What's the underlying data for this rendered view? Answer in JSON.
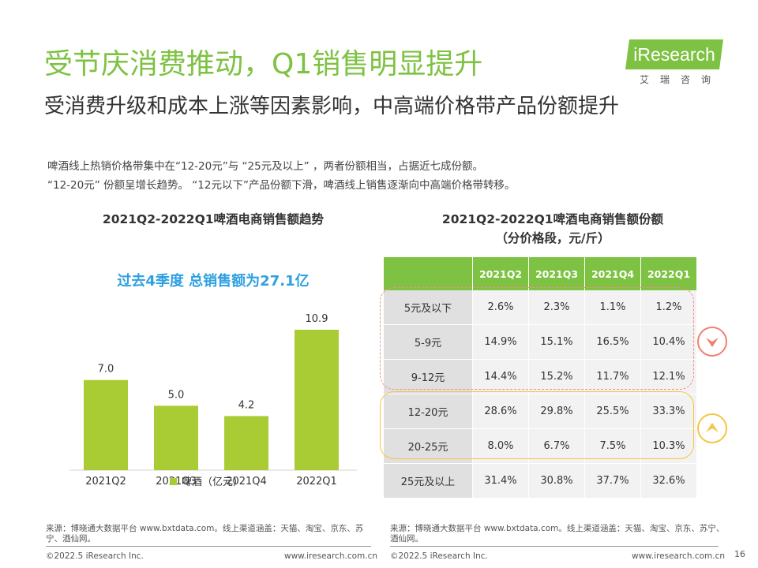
{
  "title": "受节庆消费推动，Q1销售明显提升",
  "subtitle": "受消费升级和成本上涨等因素影响，中高端价格带产品份额提升",
  "logo": {
    "word": "iResearch",
    "cn": "艾瑞咨询"
  },
  "description": [
    "啤酒线上热销价格带集中在“12-20元”与 “25元及以上” ，两者份额相当，占据近七成份额。",
    "“12-20元” 份额呈增长趋势。 “12元以下”产品份额下滑，啤酒线上销售逐渐向中高端价格带转移。"
  ],
  "highlight": "过去4季度 总销售额为27.1亿",
  "chart_data": [
    {
      "type": "bar",
      "title": "2021Q2-2022Q1啤酒电商销售额趋势",
      "categories": [
        "2021Q2",
        "2021Q3",
        "2021Q4",
        "2022Q1"
      ],
      "series": [
        {
          "name": "啤酒（亿元）",
          "values": [
            7.0,
            5.0,
            4.2,
            10.9
          ]
        }
      ],
      "data_labels": [
        "7.0",
        "5.0",
        "4.2",
        "10.9"
      ],
      "ylim": [
        0,
        12
      ],
      "legend": "bottom",
      "color": "#a9cc35"
    },
    {
      "type": "table",
      "title": "2021Q2-2022Q1啤酒电商销售额份额",
      "subtitle": "（分价格段，元/斤）",
      "columns": [
        "2021Q2",
        "2021Q3",
        "2021Q4",
        "2022Q1"
      ],
      "rows": [
        {
          "label": "5元及以下",
          "values": [
            "2.6%",
            "2.3%",
            "1.1%",
            "1.2%"
          ]
        },
        {
          "label": "5-9元",
          "values": [
            "14.9%",
            "15.1%",
            "16.5%",
            "10.4%"
          ]
        },
        {
          "label": "9-12元",
          "values": [
            "14.4%",
            "15.2%",
            "11.7%",
            "12.1%"
          ]
        },
        {
          "label": "12-20元",
          "values": [
            "28.6%",
            "29.8%",
            "25.5%",
            "33.3%"
          ]
        },
        {
          "label": "20-25元",
          "values": [
            "8.0%",
            "6.7%",
            "7.5%",
            "10.3%"
          ]
        },
        {
          "label": "25元及以上",
          "values": [
            "31.4%",
            "30.8%",
            "37.7%",
            "32.6%"
          ]
        }
      ],
      "header_color": "#7dc242"
    }
  ],
  "source": "来源：博晓通大数据平台 www.bxtdata.com。线上渠道涵盖：天猫、淘宝、京东、苏宁、酒仙网。",
  "footer": {
    "copyright": "©2022.5 iResearch Inc.",
    "url": "www.iresearch.com.cn",
    "page": "16"
  }
}
